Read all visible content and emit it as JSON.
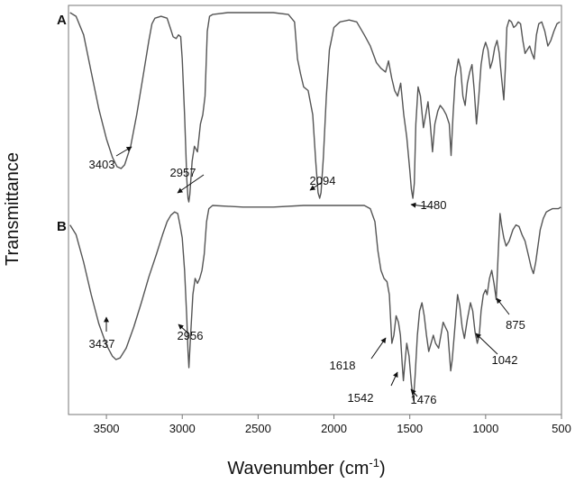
{
  "chart_data": {
    "type": "line",
    "title": "",
    "xlabel": "Wavenumber (cm",
    "xlabel_sup": "-1",
    "xlabel_close": ")",
    "ylabel": "Transmittance",
    "xlim": [
      3750,
      500
    ],
    "x_reversed": true,
    "x_ticks": [
      3500,
      3000,
      2500,
      2000,
      1500,
      1000,
      500
    ],
    "grid": false,
    "series": [
      {
        "name": "A",
        "color": "#555555",
        "points": [
          [
            3740,
            0.0
          ],
          [
            3700,
            0.02
          ],
          [
            3650,
            0.12
          ],
          [
            3600,
            0.32
          ],
          [
            3550,
            0.52
          ],
          [
            3500,
            0.68
          ],
          [
            3460,
            0.78
          ],
          [
            3430,
            0.83
          ],
          [
            3403,
            0.84
          ],
          [
            3380,
            0.82
          ],
          [
            3340,
            0.72
          ],
          [
            3300,
            0.55
          ],
          [
            3260,
            0.35
          ],
          [
            3220,
            0.15
          ],
          [
            3200,
            0.06
          ],
          [
            3180,
            0.03
          ],
          [
            3140,
            0.02
          ],
          [
            3100,
            0.03
          ],
          [
            3080,
            0.08
          ],
          [
            3060,
            0.13
          ],
          [
            3040,
            0.14
          ],
          [
            3025,
            0.12
          ],
          [
            3010,
            0.13
          ],
          [
            3000,
            0.25
          ],
          [
            2985,
            0.55
          ],
          [
            2970,
            0.9
          ],
          [
            2962,
            1.0
          ],
          [
            2957,
            1.02
          ],
          [
            2950,
            0.98
          ],
          [
            2935,
            0.8
          ],
          [
            2920,
            0.72
          ],
          [
            2900,
            0.75
          ],
          [
            2880,
            0.6
          ],
          [
            2865,
            0.55
          ],
          [
            2850,
            0.45
          ],
          [
            2835,
            0.1
          ],
          [
            2820,
            0.02
          ],
          [
            2800,
            0.01
          ],
          [
            2700,
            0.0
          ],
          [
            2600,
            0.0
          ],
          [
            2500,
            0.0
          ],
          [
            2400,
            0.0
          ],
          [
            2300,
            0.01
          ],
          [
            2260,
            0.05
          ],
          [
            2240,
            0.25
          ],
          [
            2220,
            0.33
          ],
          [
            2200,
            0.4
          ],
          [
            2170,
            0.42
          ],
          [
            2140,
            0.55
          ],
          [
            2120,
            0.8
          ],
          [
            2105,
            0.97
          ],
          [
            2094,
            1.0
          ],
          [
            2085,
            0.97
          ],
          [
            2070,
            0.78
          ],
          [
            2050,
            0.45
          ],
          [
            2030,
            0.2
          ],
          [
            2000,
            0.08
          ],
          [
            1960,
            0.05
          ],
          [
            1900,
            0.04
          ],
          [
            1850,
            0.05
          ],
          [
            1800,
            0.12
          ],
          [
            1760,
            0.18
          ],
          [
            1720,
            0.27
          ],
          [
            1690,
            0.3
          ],
          [
            1660,
            0.32
          ],
          [
            1640,
            0.26
          ],
          [
            1620,
            0.35
          ],
          [
            1600,
            0.42
          ],
          [
            1580,
            0.45
          ],
          [
            1560,
            0.38
          ],
          [
            1540,
            0.55
          ],
          [
            1520,
            0.67
          ],
          [
            1500,
            0.85
          ],
          [
            1490,
            0.95
          ],
          [
            1480,
            1.0
          ],
          [
            1470,
            0.92
          ],
          [
            1460,
            0.6
          ],
          [
            1445,
            0.4
          ],
          [
            1430,
            0.45
          ],
          [
            1410,
            0.62
          ],
          [
            1395,
            0.55
          ],
          [
            1380,
            0.48
          ],
          [
            1365,
            0.6
          ],
          [
            1350,
            0.75
          ],
          [
            1335,
            0.6
          ],
          [
            1315,
            0.53
          ],
          [
            1300,
            0.5
          ],
          [
            1280,
            0.52
          ],
          [
            1260,
            0.55
          ],
          [
            1240,
            0.6
          ],
          [
            1228,
            0.77
          ],
          [
            1215,
            0.55
          ],
          [
            1200,
            0.35
          ],
          [
            1180,
            0.25
          ],
          [
            1165,
            0.3
          ],
          [
            1150,
            0.45
          ],
          [
            1135,
            0.5
          ],
          [
            1120,
            0.38
          ],
          [
            1105,
            0.32
          ],
          [
            1090,
            0.28
          ],
          [
            1075,
            0.42
          ],
          [
            1060,
            0.6
          ],
          [
            1045,
            0.45
          ],
          [
            1030,
            0.28
          ],
          [
            1015,
            0.2
          ],
          [
            1000,
            0.16
          ],
          [
            985,
            0.2
          ],
          [
            970,
            0.3
          ],
          [
            955,
            0.26
          ],
          [
            940,
            0.19
          ],
          [
            925,
            0.15
          ],
          [
            910,
            0.22
          ],
          [
            895,
            0.35
          ],
          [
            880,
            0.47
          ],
          [
            870,
            0.3
          ],
          [
            860,
            0.08
          ],
          [
            845,
            0.04
          ],
          [
            830,
            0.05
          ],
          [
            815,
            0.08
          ],
          [
            800,
            0.07
          ],
          [
            785,
            0.05
          ],
          [
            770,
            0.06
          ],
          [
            755,
            0.15
          ],
          [
            740,
            0.22
          ],
          [
            725,
            0.2
          ],
          [
            710,
            0.18
          ],
          [
            695,
            0.22
          ],
          [
            680,
            0.25
          ],
          [
            665,
            0.12
          ],
          [
            650,
            0.06
          ],
          [
            630,
            0.05
          ],
          [
            610,
            0.1
          ],
          [
            590,
            0.18
          ],
          [
            570,
            0.15
          ],
          [
            550,
            0.1
          ],
          [
            530,
            0.06
          ],
          [
            510,
            0.05
          ]
        ]
      },
      {
        "name": "B",
        "color": "#555555",
        "points": [
          [
            3740,
            0.12
          ],
          [
            3700,
            0.18
          ],
          [
            3650,
            0.35
          ],
          [
            3600,
            0.55
          ],
          [
            3550,
            0.73
          ],
          [
            3500,
            0.86
          ],
          [
            3460,
            0.93
          ],
          [
            3437,
            0.95
          ],
          [
            3410,
            0.94
          ],
          [
            3370,
            0.88
          ],
          [
            3320,
            0.75
          ],
          [
            3270,
            0.6
          ],
          [
            3220,
            0.44
          ],
          [
            3170,
            0.3
          ],
          [
            3130,
            0.18
          ],
          [
            3100,
            0.1
          ],
          [
            3075,
            0.06
          ],
          [
            3050,
            0.04
          ],
          [
            3030,
            0.05
          ],
          [
            3015,
            0.12
          ],
          [
            3000,
            0.2
          ],
          [
            2985,
            0.4
          ],
          [
            2970,
            0.7
          ],
          [
            2962,
            0.9
          ],
          [
            2956,
            1.0
          ],
          [
            2948,
            0.85
          ],
          [
            2930,
            0.55
          ],
          [
            2915,
            0.45
          ],
          [
            2900,
            0.48
          ],
          [
            2885,
            0.45
          ],
          [
            2870,
            0.4
          ],
          [
            2855,
            0.3
          ],
          [
            2840,
            0.1
          ],
          [
            2825,
            0.02
          ],
          [
            2800,
            0.0
          ],
          [
            2600,
            0.01
          ],
          [
            2400,
            0.01
          ],
          [
            2200,
            0.0
          ],
          [
            2000,
            0.0
          ],
          [
            1800,
            0.0
          ],
          [
            1760,
            0.02
          ],
          [
            1730,
            0.1
          ],
          [
            1710,
            0.28
          ],
          [
            1690,
            0.4
          ],
          [
            1670,
            0.45
          ],
          [
            1650,
            0.47
          ],
          [
            1635,
            0.55
          ],
          [
            1618,
            0.85
          ],
          [
            1605,
            0.8
          ],
          [
            1590,
            0.68
          ],
          [
            1575,
            0.72
          ],
          [
            1562,
            0.8
          ],
          [
            1550,
            0.98
          ],
          [
            1542,
            1.08
          ],
          [
            1535,
            1.0
          ],
          [
            1520,
            0.85
          ],
          [
            1505,
            0.93
          ],
          [
            1490,
            1.1
          ],
          [
            1476,
            1.2
          ],
          [
            1465,
            1.05
          ],
          [
            1450,
            0.8
          ],
          [
            1435,
            0.65
          ],
          [
            1420,
            0.6
          ],
          [
            1405,
            0.68
          ],
          [
            1390,
            0.8
          ],
          [
            1375,
            0.9
          ],
          [
            1360,
            0.85
          ],
          [
            1345,
            0.8
          ],
          [
            1330,
            0.85
          ],
          [
            1310,
            0.88
          ],
          [
            1295,
            0.8
          ],
          [
            1280,
            0.72
          ],
          [
            1265,
            0.75
          ],
          [
            1250,
            0.78
          ],
          [
            1230,
            1.02
          ],
          [
            1220,
            0.95
          ],
          [
            1200,
            0.72
          ],
          [
            1185,
            0.55
          ],
          [
            1170,
            0.62
          ],
          [
            1155,
            0.75
          ],
          [
            1140,
            0.82
          ],
          [
            1120,
            0.7
          ],
          [
            1100,
            0.6
          ],
          [
            1085,
            0.65
          ],
          [
            1070,
            0.78
          ],
          [
            1055,
            0.85
          ],
          [
            1042,
            0.8
          ],
          [
            1030,
            0.65
          ],
          [
            1015,
            0.55
          ],
          [
            1000,
            0.52
          ],
          [
            990,
            0.55
          ],
          [
            975,
            0.45
          ],
          [
            960,
            0.4
          ],
          [
            945,
            0.48
          ],
          [
            930,
            0.58
          ],
          [
            918,
            0.32
          ],
          [
            905,
            0.05
          ],
          [
            895,
            0.12
          ],
          [
            880,
            0.2
          ],
          [
            865,
            0.25
          ],
          [
            845,
            0.22
          ],
          [
            820,
            0.15
          ],
          [
            800,
            0.12
          ],
          [
            780,
            0.13
          ],
          [
            760,
            0.18
          ],
          [
            740,
            0.22
          ],
          [
            720,
            0.3
          ],
          [
            700,
            0.38
          ],
          [
            685,
            0.42
          ],
          [
            670,
            0.35
          ],
          [
            655,
            0.25
          ],
          [
            640,
            0.15
          ],
          [
            620,
            0.08
          ],
          [
            600,
            0.04
          ],
          [
            580,
            0.03
          ],
          [
            560,
            0.02
          ],
          [
            540,
            0.02
          ],
          [
            520,
            0.02
          ],
          [
            505,
            0.01
          ]
        ]
      }
    ],
    "annotations": [
      {
        "panel": "A",
        "label": "3403"
      },
      {
        "panel": "A",
        "label": "2957"
      },
      {
        "panel": "A",
        "label": "2094"
      },
      {
        "panel": "A",
        "label": "1480"
      },
      {
        "panel": "B",
        "label": "3437"
      },
      {
        "panel": "B",
        "label": "2956"
      },
      {
        "panel": "B",
        "label": "1618"
      },
      {
        "panel": "B",
        "label": "1542"
      },
      {
        "panel": "B",
        "label": "1476"
      },
      {
        "panel": "B",
        "label": "1042"
      },
      {
        "panel": "B",
        "label": "875"
      }
    ]
  }
}
